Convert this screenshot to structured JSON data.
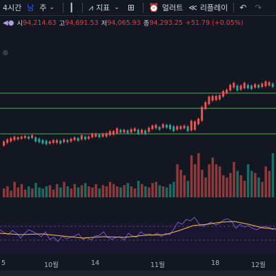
{
  "toolbar": {
    "interval": "4시간",
    "interval_alt": "남",
    "week": "주",
    "indicators": "지표",
    "alert": "얼러트",
    "replay": "리플레이"
  },
  "ohlc": {
    "open_label": "시",
    "open": "94,214.63",
    "high_label": "고",
    "high": "94,691.53",
    "low_label": "저",
    "low": "94,065.93",
    "close_label": "종",
    "close": "94,293.25",
    "change": "+51.79 (+0.05%)"
  },
  "xaxis": [
    "5",
    "10월",
    "14",
    "11월",
    "18",
    "12월"
  ],
  "colors": {
    "up": "#26a69a",
    "down": "#ef5350",
    "hline": "#4caf50",
    "rsi": "#7e57c2",
    "rsi_ma": "#f5c542"
  },
  "candles": [
    [
      205,
      211
    ],
    [
      202,
      207
    ],
    [
      200,
      205
    ],
    [
      198,
      203
    ],
    [
      199,
      202
    ],
    [
      198,
      201
    ],
    [
      197,
      200
    ],
    [
      198,
      201
    ],
    [
      196,
      200
    ],
    [
      199,
      205
    ],
    [
      201,
      206
    ],
    [
      203,
      208
    ],
    [
      204,
      209
    ],
    [
      205,
      208
    ],
    [
      203,
      207
    ],
    [
      203,
      207
    ],
    [
      204,
      208
    ],
    [
      202,
      206
    ],
    [
      203,
      206
    ],
    [
      201,
      205
    ],
    [
      199,
      203
    ],
    [
      200,
      204
    ],
    [
      196,
      202
    ],
    [
      198,
      202
    ],
    [
      198,
      201
    ],
    [
      194,
      199
    ],
    [
      194,
      198
    ],
    [
      195,
      199
    ],
    [
      194,
      198
    ],
    [
      193,
      198
    ],
    [
      190,
      196
    ],
    [
      190,
      195
    ],
    [
      186,
      193
    ],
    [
      188,
      192
    ],
    [
      188,
      192
    ],
    [
      189,
      193
    ],
    [
      187,
      192
    ],
    [
      186,
      190
    ],
    [
      188,
      194
    ],
    [
      188,
      193
    ],
    [
      189,
      194
    ],
    [
      185,
      191
    ],
    [
      182,
      187
    ],
    [
      181,
      186
    ],
    [
      184,
      188
    ],
    [
      180,
      185
    ],
    [
      181,
      185
    ],
    [
      181,
      187
    ],
    [
      183,
      190
    ],
    [
      183,
      188
    ],
    [
      183,
      187
    ],
    [
      182,
      186
    ],
    [
      183,
      190
    ],
    [
      175,
      189
    ],
    [
      176,
      188
    ],
    [
      172,
      180
    ],
    [
      155,
      175
    ],
    [
      148,
      158
    ],
    [
      140,
      151
    ],
    [
      139,
      146
    ],
    [
      139,
      145
    ],
    [
      138,
      144
    ],
    [
      132,
      140
    ],
    [
      130,
      135
    ],
    [
      123,
      131
    ],
    [
      120,
      127
    ],
    [
      124,
      131
    ],
    [
      124,
      130
    ],
    [
      120,
      128
    ],
    [
      123,
      128
    ],
    [
      124,
      129
    ],
    [
      122,
      127
    ],
    [
      123,
      127
    ],
    [
      121,
      126
    ],
    [
      118,
      125
    ],
    [
      119,
      124
    ],
    [
      121,
      126
    ]
  ],
  "volumes": [
    8,
    10,
    6,
    14,
    9,
    12,
    7,
    10,
    8,
    13,
    9,
    8,
    10,
    11,
    7,
    12,
    9,
    14,
    10,
    8,
    12,
    9,
    11,
    13,
    10,
    9,
    12,
    8,
    11,
    10,
    14,
    12,
    10,
    9,
    11,
    13,
    10,
    8,
    15,
    12,
    10,
    9,
    13,
    14,
    11,
    10,
    9,
    12,
    14,
    30,
    25,
    20,
    15,
    38,
    30,
    40,
    25,
    18,
    30,
    36,
    30,
    28,
    20,
    18,
    22,
    32,
    24,
    20,
    15,
    30,
    24,
    22,
    18,
    14,
    28,
    24,
    40
  ]
}
